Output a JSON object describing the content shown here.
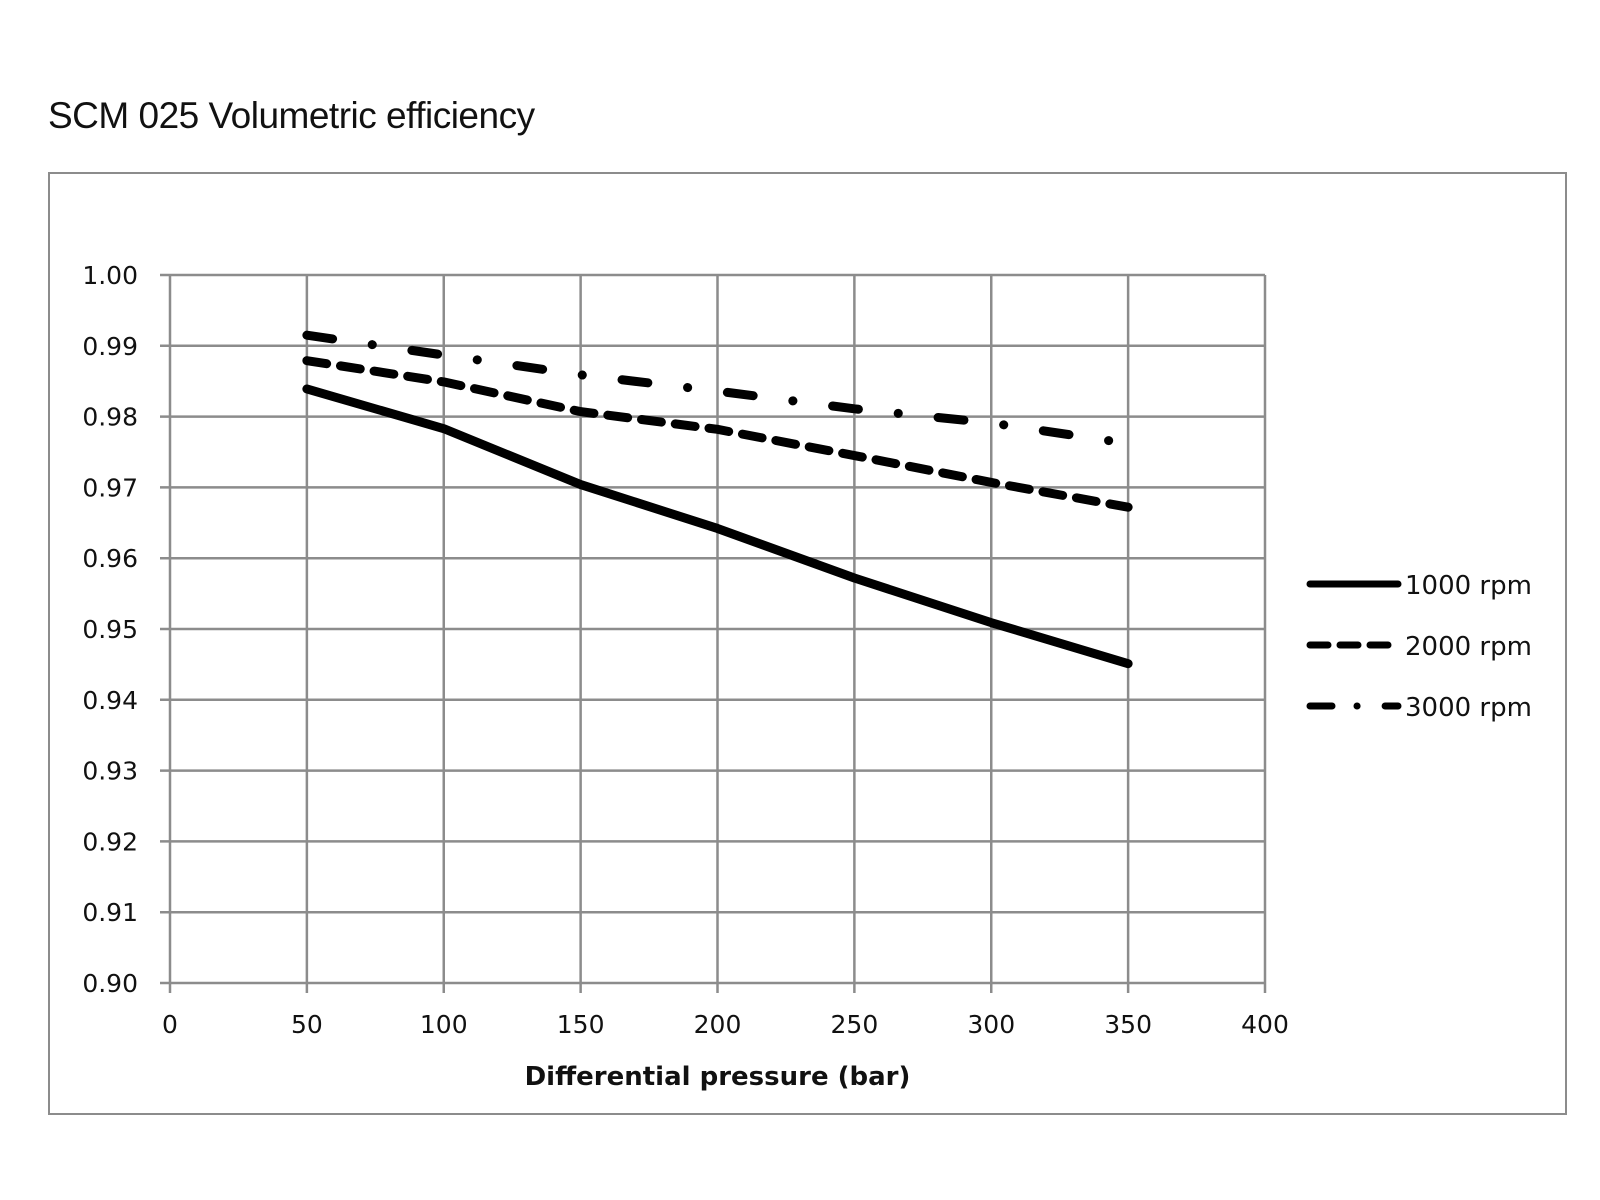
{
  "chart_data": {
    "type": "line",
    "title": "SCM 025 Volumetric efficiency",
    "xlabel": "Differential pressure (bar)",
    "ylabel": "",
    "xlim": [
      0,
      400
    ],
    "ylim": [
      0.9,
      1.0
    ],
    "x_ticks": [
      "0",
      "50",
      "100",
      "150",
      "200",
      "250",
      "300",
      "350",
      "400"
    ],
    "x_tick_values": [
      0,
      50,
      100,
      150,
      200,
      250,
      300,
      350,
      400
    ],
    "y_ticks": [
      "1.00",
      "0.99",
      "0.98",
      "0.97",
      "0.96",
      "0.95",
      "0.94",
      "0.93",
      "0.92",
      "0.91",
      "0.90"
    ],
    "y_tick_values": [
      1.0,
      0.99,
      0.98,
      0.97,
      0.96,
      0.95,
      0.94,
      0.93,
      0.92,
      0.91,
      0.9
    ],
    "grid": true,
    "legend_position": "right",
    "x": [
      50,
      100,
      150,
      200,
      250,
      300,
      350
    ],
    "series": [
      {
        "name": "1000 rpm",
        "style": "solid",
        "color": "#000000",
        "values": [
          0.9839,
          0.9783,
          0.9704,
          0.9642,
          0.9572,
          0.9509,
          0.9451
        ]
      },
      {
        "name": "2000 rpm",
        "style": "dashed",
        "color": "#000000",
        "values": [
          0.9879,
          0.9849,
          0.9807,
          0.9782,
          0.9745,
          0.9707,
          0.9672
        ]
      },
      {
        "name": "3000 rpm",
        "style": "dash-dot",
        "color": "#000000",
        "values": [
          0.9915,
          0.9887,
          0.9859,
          0.9836,
          0.9811,
          0.9791,
          0.9762
        ]
      }
    ]
  },
  "colors": {
    "grid": "#8c8c8c",
    "line": "#000000",
    "frame": "#8c8c8c"
  }
}
